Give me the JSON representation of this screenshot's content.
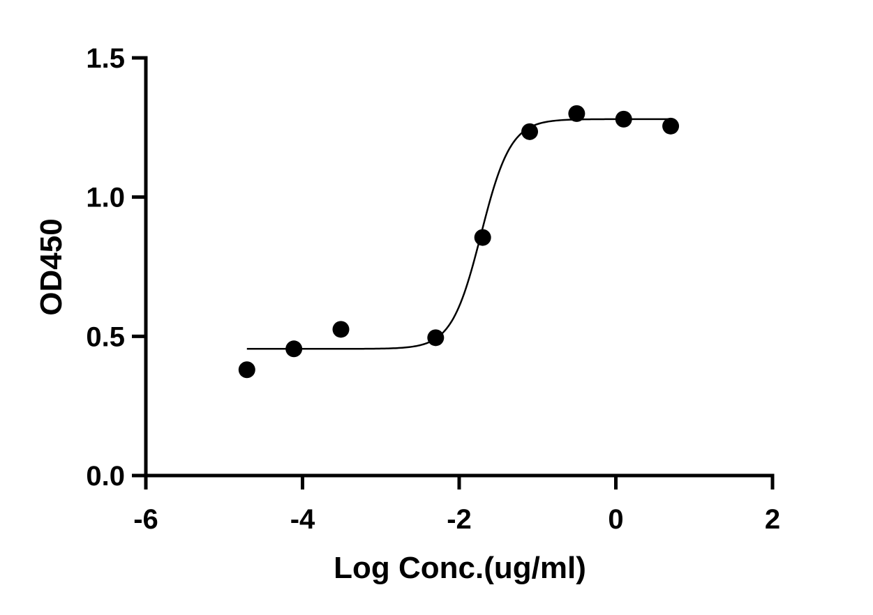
{
  "chart_data": {
    "type": "scatter",
    "title": "",
    "xlabel": "Log Conc.(ug/ml)",
    "ylabel": "OD450",
    "xlim": [
      -6,
      2
    ],
    "ylim": [
      0,
      1.5
    ],
    "xticks": [
      -6,
      -4,
      -2,
      0,
      2
    ],
    "xtick_labels": [
      "-6",
      "-4",
      "-2",
      "0",
      "2"
    ],
    "yticks": [
      0,
      0.5,
      1.0,
      1.5
    ],
    "ytick_labels": [
      "0.0",
      "0.5",
      "1.0",
      "1.5"
    ],
    "grid": false,
    "legend": "none",
    "series": [
      {
        "type": "scatter",
        "x": [
          -4.71,
          -4.11,
          -3.51,
          -2.3,
          -1.7,
          -1.1,
          -0.5,
          0.1,
          0.7
        ],
        "y": [
          0.38,
          0.455,
          0.525,
          0.495,
          0.855,
          1.235,
          1.3,
          1.28,
          1.255
        ]
      },
      {
        "type": "line",
        "fit": "four-parameter logistic",
        "bottom": 0.455,
        "top": 1.28,
        "logEC50": -1.72,
        "hill": 2.3,
        "xrange": [
          -4.71,
          0.7
        ]
      }
    ],
    "colors": {
      "points": "#000000",
      "curve": "#000000",
      "axes": "#000000"
    }
  }
}
